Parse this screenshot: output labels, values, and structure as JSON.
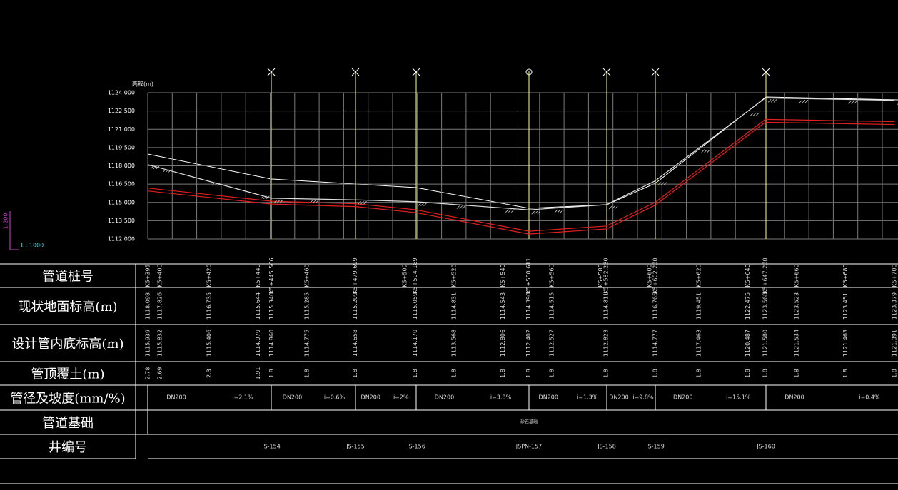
{
  "axis": {
    "title": "高程(m)",
    "ticks": [
      {
        "value": 1112,
        "label": "1112.000"
      },
      {
        "value": 1113.5,
        "label": "1113.500"
      },
      {
        "value": 1115,
        "label": "1115.000"
      },
      {
        "value": 1116.5,
        "label": "1116.500"
      },
      {
        "value": 1118,
        "label": "1118.000"
      },
      {
        "value": 1119.5,
        "label": "1119.500"
      },
      {
        "value": 1121,
        "label": "1121.000"
      },
      {
        "value": 1122.5,
        "label": "1122.500"
      },
      {
        "value": 1124,
        "label": "1124.000"
      }
    ]
  },
  "scale": {
    "vertical": "1:200",
    "horizontal": "1 : 1000"
  },
  "table": {
    "headers": [
      "管道桩号",
      "现状地面标高(m)",
      "设计管内底标高(m)",
      "管顶覆土(m)",
      "管径及坡度(mm/%)",
      "管道基础",
      "井编号"
    ],
    "stations": [
      "K5+395",
      "K5+400",
      "K5+420",
      "K5+440",
      "K5+445.566",
      "K5+460",
      "K5+479.699",
      "K5+500",
      "K5+504.189",
      "K5+520",
      "K5+540",
      "K5+550.611",
      "K5+560",
      "K5+580",
      "K5+582.230",
      "K5+600",
      "K5+602.230",
      "K5+620",
      "K5+640",
      "K5+647.230",
      "K5+660",
      "K5+680",
      "K5+700"
    ],
    "ground": [
      "1118.098",
      "1117.826",
      "1116.735",
      "1115.644",
      "1115.340",
      "1115.285",
      "1115.209",
      null,
      "1115.059",
      "1114.831",
      "1114.543",
      "1114.390",
      "1114.515",
      null,
      "1114.811",
      null,
      "1116.765",
      "1119.451",
      "1122.475",
      "1123.568",
      "1123.523",
      "1123.451",
      "1123.379"
    ],
    "invert": [
      "1115.939",
      "1115.832",
      "1115.406",
      "1114.979",
      "1114.860",
      "1114.775",
      "1114.658",
      null,
      "1114.170",
      "1113.568",
      "1112.806",
      "1112.402",
      "1112.527",
      null,
      "1112.823",
      null,
      "1114.777",
      "1117.463",
      "1120.487",
      "1121.580",
      "1121.534",
      "1121.463",
      "1121.391"
    ],
    "cover": [
      "2.78",
      "2.69",
      "2.3",
      "1.91",
      "1.8",
      "1.8",
      "1.8",
      null,
      "1.8",
      "1.8",
      "1.8",
      "1.8",
      "1.8",
      null,
      "1.8",
      null,
      "1.8",
      "1.8",
      "1.8",
      "1.8",
      "1.8",
      "1.8",
      "1.8"
    ],
    "segments": [
      {
        "diameter": "DN200",
        "slope": "i=2.1%"
      },
      {
        "diameter": "DN200",
        "slope": "i=0.6%"
      },
      {
        "diameter": "DN200",
        "slope": "i=2%"
      },
      {
        "diameter": "DN200",
        "slope": "i=3.8%"
      },
      {
        "diameter": "DN200",
        "slope": "i=1.3%"
      },
      {
        "diameter": "DN200",
        "slope": "i=9.8%"
      },
      {
        "diameter": "DN200",
        "slope": "i=15.1%"
      },
      {
        "diameter": "DN200",
        "slope": "i=0.4%"
      }
    ],
    "foundation": "砂石基础",
    "wells": [
      "JS-154",
      "JS-155",
      "JS-156",
      "JSPN-157",
      "JS-158",
      "JS-159",
      "JS-160"
    ]
  }
}
